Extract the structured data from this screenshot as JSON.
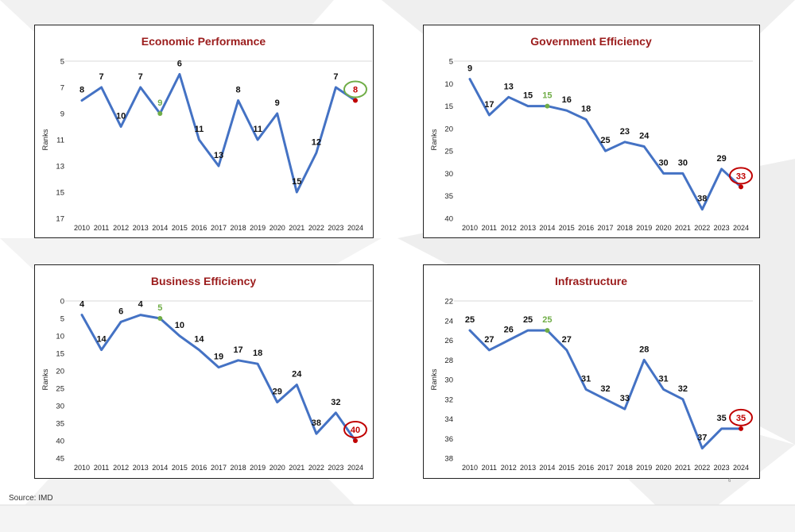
{
  "source": "Source: IMD",
  "page_number": "6",
  "colors": {
    "title": "#9b1c1c",
    "line": "#4472c4",
    "highlight_green": "#70ad47",
    "highlight_red": "#c00000",
    "label": "#111111",
    "axis_text": "#222222"
  },
  "chart_data": [
    {
      "type": "line",
      "title": "Economic Performance",
      "ylabel": "Ranks",
      "xlabel": "",
      "y_inverted": true,
      "ylim": [
        5,
        17
      ],
      "yticks": [
        5,
        7,
        9,
        11,
        13,
        15,
        17
      ],
      "categories": [
        "2010",
        "2011",
        "2012",
        "2013",
        "2014",
        "2015",
        "2016",
        "2017",
        "2018",
        "2019",
        "2020",
        "2021",
        "2022",
        "2023",
        "2024"
      ],
      "values": [
        8,
        7,
        10,
        7,
        9,
        6,
        11,
        13,
        8,
        11,
        9,
        15,
        12,
        7,
        8
      ],
      "highlight_green_index": 4,
      "circled_label": {
        "index": 14,
        "color": "green"
      },
      "grid": false
    },
    {
      "type": "line",
      "title": "Government Efficiency",
      "ylabel": "Ranks",
      "xlabel": "",
      "y_inverted": true,
      "ylim": [
        5,
        40
      ],
      "yticks": [
        5,
        10,
        15,
        20,
        25,
        30,
        35,
        40
      ],
      "categories": [
        "2010",
        "2011",
        "2012",
        "2013",
        "2014",
        "2015",
        "2016",
        "2017",
        "2018",
        "2019",
        "2020",
        "2021",
        "2022",
        "2023",
        "2024"
      ],
      "values": [
        9,
        17,
        13,
        15,
        15,
        16,
        18,
        25,
        23,
        24,
        30,
        30,
        38,
        29,
        33
      ],
      "highlight_green_index": 4,
      "circled_label": {
        "index": 14,
        "color": "red"
      },
      "grid": false
    },
    {
      "type": "line",
      "title": "Business Efficiency",
      "ylabel": "Ranks",
      "xlabel": "",
      "y_inverted": true,
      "ylim": [
        0,
        45
      ],
      "yticks": [
        0,
        5,
        10,
        15,
        20,
        25,
        30,
        35,
        40,
        45
      ],
      "categories": [
        "2010",
        "2011",
        "2012",
        "2013",
        "2014",
        "2015",
        "2016",
        "2017",
        "2018",
        "2019",
        "2020",
        "2021",
        "2022",
        "2023",
        "2024"
      ],
      "values": [
        4,
        14,
        6,
        4,
        5,
        10,
        14,
        19,
        17,
        18,
        29,
        24,
        38,
        32,
        40
      ],
      "highlight_green_index": 4,
      "circled_label": {
        "index": 14,
        "color": "red"
      },
      "grid": false
    },
    {
      "type": "line",
      "title": "Infrastructure",
      "ylabel": "Ranks",
      "xlabel": "",
      "y_inverted": true,
      "ylim": [
        22,
        38
      ],
      "yticks": [
        22,
        24,
        26,
        28,
        30,
        32,
        34,
        36,
        38
      ],
      "categories": [
        "2010",
        "2011",
        "2012",
        "2013",
        "2014",
        "2015",
        "2016",
        "2017",
        "2018",
        "2019",
        "2020",
        "2021",
        "2022",
        "2023",
        "2024"
      ],
      "values": [
        25,
        27,
        26,
        25,
        25,
        27,
        31,
        32,
        33,
        28,
        31,
        32,
        37,
        35,
        35
      ],
      "highlight_green_index": 4,
      "circled_label": {
        "index": 14,
        "color": "red"
      },
      "grid": false
    }
  ]
}
